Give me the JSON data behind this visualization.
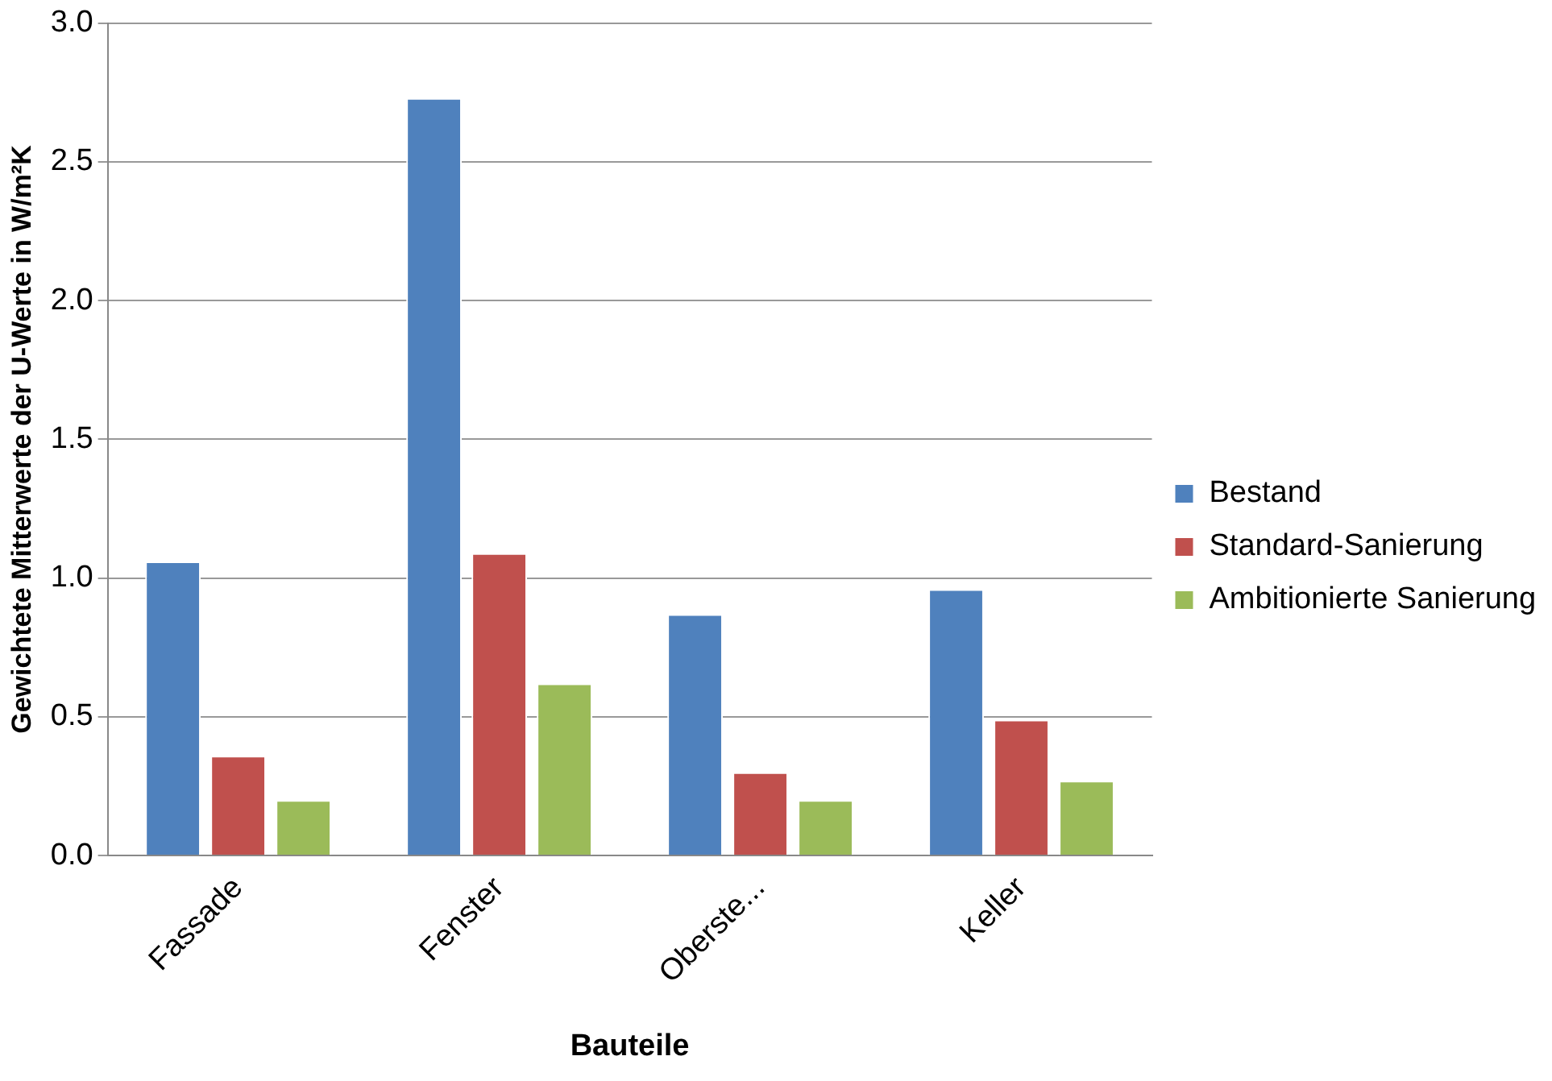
{
  "chart_data": {
    "type": "bar",
    "xlabel": "Bauteile",
    "ylabel": "Gewichtete Mitterwerte der U-Werte in W/m²K",
    "categories": [
      "Fassade",
      "Fenster",
      "Oberste...",
      "Keller"
    ],
    "series": [
      {
        "name": "Bestand",
        "color": "#4f81bd",
        "values": [
          1.06,
          2.73,
          0.87,
          0.96
        ]
      },
      {
        "name": "Standard-Sanierung",
        "color": "#c0504d",
        "values": [
          0.36,
          1.09,
          0.3,
          0.49
        ]
      },
      {
        "name": "Ambitionierte Sanierung",
        "color": "#9bbb59",
        "values": [
          0.2,
          0.62,
          0.2,
          0.27
        ]
      }
    ],
    "ylim": [
      0,
      3
    ],
    "yticks": [
      {
        "value": 0,
        "label": "0.0"
      },
      {
        "value": 0.5,
        "label": "0.5"
      },
      {
        "value": 1,
        "label": "1.0"
      },
      {
        "value": 1.5,
        "label": "1.5"
      },
      {
        "value": 2,
        "label": "2.0"
      },
      {
        "value": 2.5,
        "label": "2.5"
      },
      {
        "value": 3,
        "label": "3.0"
      }
    ],
    "grid": "y",
    "legend": "right"
  }
}
